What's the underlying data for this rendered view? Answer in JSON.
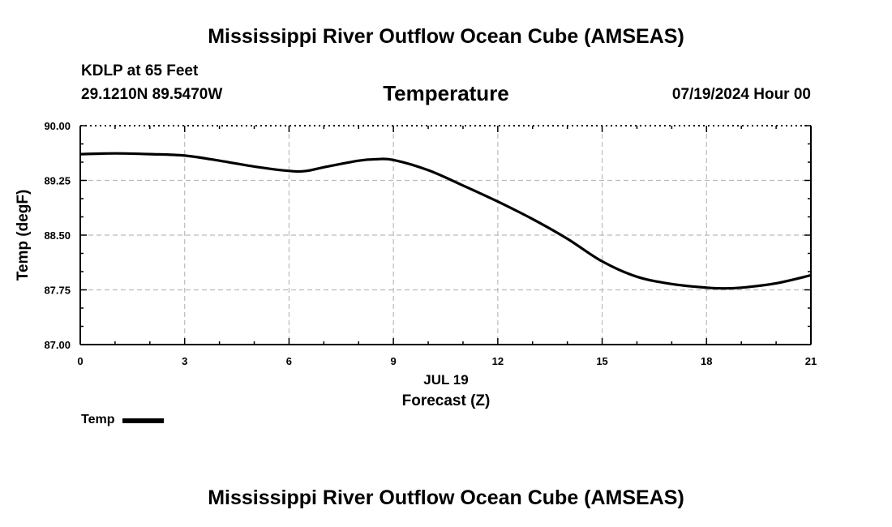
{
  "header": {
    "title": "Mississippi River Outflow Ocean Cube (AMSEAS)",
    "station": "KDLP at 65 Feet",
    "coords": "29.1210N  89.5470W",
    "variable": "Temperature",
    "datetime": "07/19/2024 Hour 00"
  },
  "footer": {
    "title": "Mississippi River Outflow Ocean Cube (AMSEAS)"
  },
  "legend": {
    "label": "Temp"
  },
  "chart_data": {
    "type": "line",
    "title": "Temperature",
    "xlabel": "Forecast (Z)",
    "xlabel_date": "JUL 19",
    "ylabel": "Temp (degF)",
    "xlim": [
      0,
      21
    ],
    "ylim": [
      87.0,
      90.0
    ],
    "xticks": [
      0,
      3,
      6,
      9,
      12,
      15,
      18,
      21
    ],
    "xtick_labels": [
      "0",
      "3",
      "6",
      "9",
      "12",
      "15",
      "18",
      "21"
    ],
    "yticks": [
      87.0,
      87.75,
      88.5,
      89.25,
      90.0
    ],
    "ytick_labels": [
      "87.00",
      "87.75",
      "88.50",
      "89.25",
      "90.00"
    ],
    "grid": true,
    "series": [
      {
        "name": "Temp",
        "color": "#000000",
        "x": [
          0,
          1,
          2,
          3,
          4,
          5,
          6,
          6.5,
          7,
          8,
          8.5,
          9,
          10,
          11,
          12,
          13,
          14,
          15,
          16,
          17,
          18,
          18.5,
          19,
          20,
          21
        ],
        "y": [
          89.61,
          89.62,
          89.61,
          89.59,
          89.52,
          89.44,
          89.38,
          89.38,
          89.43,
          89.52,
          89.54,
          89.53,
          89.39,
          89.18,
          88.96,
          88.72,
          88.45,
          88.14,
          87.93,
          87.83,
          87.78,
          87.77,
          87.78,
          87.84,
          87.95
        ]
      }
    ]
  }
}
